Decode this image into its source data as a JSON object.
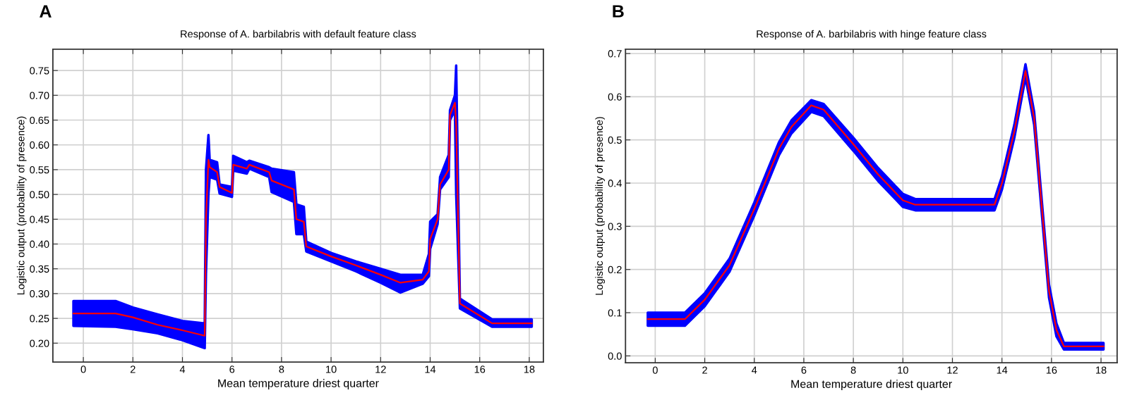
{
  "chart_data": [
    {
      "type": "line",
      "title": "Response of A. barbilabris with default feature class",
      "xlabel": "Mean temperature driest quarter",
      "ylabel": "Logistic output (probability of presence)",
      "annotations": [
        "A"
      ],
      "xlim": [
        -1.23,
        18.57
      ],
      "xticks": [
        0,
        2,
        4,
        6,
        8,
        10,
        12,
        14,
        16,
        18
      ],
      "ylim": [
        0.162,
        0.793
      ],
      "yticks": [
        {
          "value": 0.2,
          "label": "0.20"
        },
        {
          "value": 0.25,
          "label": "0.25"
        },
        {
          "value": 0.3,
          "label": "0.30"
        },
        {
          "value": 0.35,
          "label": "0.35"
        },
        {
          "value": 0.4,
          "label": "0.40"
        },
        {
          "value": 0.45,
          "label": "0.45"
        },
        {
          "value": 0.5,
          "label": "0.50"
        },
        {
          "value": 0.55,
          "label": "0.55"
        },
        {
          "value": 0.6,
          "label": "0.60"
        },
        {
          "value": 0.65,
          "label": "0.65"
        },
        {
          "value": 0.7,
          "label": "0.70"
        },
        {
          "value": 0.75,
          "label": "0.75"
        }
      ],
      "grid": true,
      "legend": false,
      "marker": "none",
      "line_style": "solid",
      "series": [
        {
          "color": "#ff0000",
          "colors": [
            "#0000ff",
            "#0000ff",
            "#0000ff",
            "#0000ff",
            "#0000ff",
            "#0000ff",
            "#0000ff",
            "#0000ff",
            "#0000ff",
            "#0000ff",
            "#0000ff",
            "#0000ff",
            "#0000ff",
            "#0000ff",
            "#0000ff",
            "#0000ff",
            "#0000ff",
            "#0000ff",
            "#0000ff",
            "#0000ff",
            "#0000ff",
            "#0000ff",
            "#0000ff",
            "#0000ff",
            "#0000ff",
            "#0000ff",
            "#0000ff",
            "#0000ff",
            "#0000ff",
            "#0000ff",
            "#0000ff",
            "#0000ff",
            "#0000ff",
            "#0000ff",
            "#0000ff",
            "#0000ff",
            "#0000ff"
          ],
          "x": [
            -0.4,
            1.3,
            2.0,
            3.0,
            4.0,
            4.9,
            4.95,
            5.05,
            5.1,
            5.4,
            5.5,
            6.0,
            6.05,
            6.6,
            6.7,
            7.5,
            7.6,
            8.5,
            8.6,
            8.9,
            9.0,
            10.0,
            11.0,
            12.0,
            12.8,
            13.7,
            13.95,
            14.0,
            14.3,
            14.4,
            14.75,
            14.8,
            15.0,
            15.05,
            15.2,
            16.5,
            18.1
          ],
          "values": [
            0.26,
            0.26,
            0.252,
            0.237,
            0.226,
            0.215,
            0.45,
            0.57,
            0.555,
            0.545,
            0.515,
            0.503,
            0.56,
            0.552,
            0.56,
            0.545,
            0.528,
            0.51,
            0.45,
            0.445,
            0.395,
            0.375,
            0.357,
            0.338,
            0.322,
            0.328,
            0.345,
            0.41,
            0.45,
            0.52,
            0.55,
            0.66,
            0.685,
            0.64,
            0.28,
            0.24,
            0.24
          ],
          "lower": [
            0.235,
            0.233,
            0.228,
            0.22,
            0.206,
            0.19,
            0.34,
            0.5,
            0.535,
            0.53,
            0.502,
            0.495,
            0.548,
            0.542,
            0.552,
            0.535,
            0.505,
            0.485,
            0.42,
            0.42,
            0.385,
            0.365,
            0.345,
            0.322,
            0.302,
            0.32,
            0.335,
            0.39,
            0.44,
            0.51,
            0.535,
            0.65,
            0.67,
            0.5,
            0.27,
            0.233,
            0.233
          ],
          "upper": [
            0.285,
            0.285,
            0.272,
            0.258,
            0.245,
            0.24,
            0.55,
            0.62,
            0.57,
            0.565,
            0.52,
            0.515,
            0.578,
            0.565,
            0.568,
            0.555,
            0.552,
            0.545,
            0.48,
            0.475,
            0.405,
            0.382,
            0.365,
            0.35,
            0.338,
            0.338,
            0.38,
            0.445,
            0.46,
            0.535,
            0.58,
            0.67,
            0.7,
            0.76,
            0.29,
            0.248,
            0.248
          ]
        }
      ]
    },
    {
      "type": "line",
      "title": "Response of A. barbilabris with hinge feature class",
      "xlabel": "Mean temperature driest quarter",
      "ylabel": "Logistic output (probability of presence)",
      "annotations": [
        "B"
      ],
      "xlim": [
        -1.2,
        18.65
      ],
      "xticks": [
        0,
        2,
        4,
        6,
        8,
        10,
        12,
        14,
        16,
        18
      ],
      "ylim": [
        -0.016,
        0.71
      ],
      "yticks": [
        {
          "value": 0,
          "label": "0.0"
        },
        0.1,
        0.2,
        0.3,
        0.4,
        0.5,
        0.6,
        0.7
      ],
      "grid": true,
      "legend": false,
      "marker": "none",
      "line_style": "solid",
      "series": [
        {
          "color": "#ff0000",
          "colors": [
            "#0000ff",
            "#0000ff",
            "#0000ff",
            "#0000ff",
            "#0000ff",
            "#0000ff",
            "#0000ff",
            "#0000ff",
            "#0000ff",
            "#0000ff",
            "#0000ff",
            "#0000ff",
            "#0000ff",
            "#0000ff",
            "#0000ff",
            "#0000ff",
            "#0000ff",
            "#0000ff",
            "#0000ff",
            "#0000ff",
            "#0000ff",
            "#0000ff",
            "#0000ff"
          ],
          "x": [
            -0.3,
            1.2,
            2.0,
            3.0,
            4.0,
            5.0,
            5.5,
            6.3,
            6.8,
            8.0,
            9.0,
            10.0,
            10.5,
            13.7,
            14.0,
            14.5,
            14.95,
            15.3,
            15.6,
            15.9,
            16.2,
            16.5,
            18.1
          ],
          "values": [
            0.085,
            0.085,
            0.13,
            0.21,
            0.34,
            0.48,
            0.53,
            0.58,
            0.57,
            0.49,
            0.42,
            0.36,
            0.35,
            0.35,
            0.4,
            0.52,
            0.66,
            0.55,
            0.35,
            0.15,
            0.06,
            0.022,
            0.022
          ],
          "lower": [
            0.07,
            0.07,
            0.115,
            0.195,
            0.325,
            0.465,
            0.515,
            0.565,
            0.555,
            0.475,
            0.405,
            0.345,
            0.337,
            0.337,
            0.385,
            0.505,
            0.645,
            0.535,
            0.335,
            0.135,
            0.045,
            0.015,
            0.015
          ],
          "upper": [
            0.1,
            0.1,
            0.145,
            0.225,
            0.355,
            0.495,
            0.545,
            0.592,
            0.583,
            0.505,
            0.435,
            0.375,
            0.363,
            0.363,
            0.415,
            0.535,
            0.675,
            0.565,
            0.365,
            0.165,
            0.075,
            0.03,
            0.03
          ]
        }
      ]
    }
  ]
}
